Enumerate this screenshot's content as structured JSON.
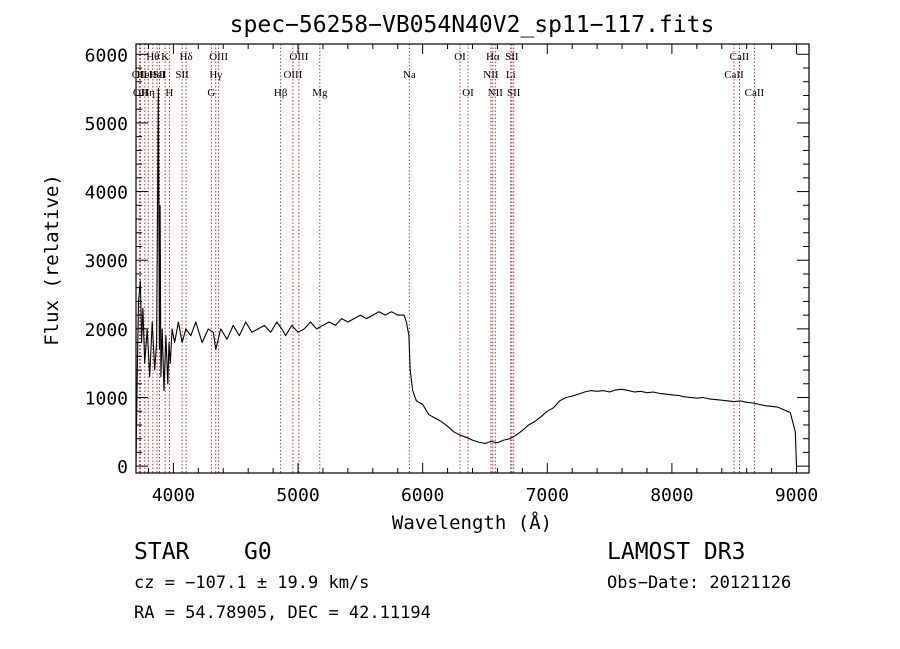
{
  "chart_data": {
    "type": "line",
    "title": "spec−56258−VB054N40V2_sp11−117.fits",
    "xlabel": "Wavelength (Å)",
    "ylabel": "Flux (relative)",
    "xlim": [
      3700,
      9100
    ],
    "ylim": [
      -100,
      6150
    ],
    "xticks": [
      4000,
      5000,
      6000,
      7000,
      8000,
      9000
    ],
    "yticks": [
      0,
      1000,
      2000,
      3000,
      4000,
      5000,
      6000
    ],
    "series": [
      {
        "name": "flux",
        "x": [
          3700,
          3710,
          3720,
          3735,
          3745,
          3755,
          3770,
          3790,
          3810,
          3830,
          3850,
          3865,
          3880,
          3888,
          3893,
          3900,
          3910,
          3925,
          3940,
          3955,
          3965,
          3975,
          3990,
          4010,
          4040,
          4070,
          4100,
          4140,
          4180,
          4230,
          4280,
          4320,
          4340,
          4380,
          4430,
          4480,
          4530,
          4580,
          4630,
          4680,
          4730,
          4780,
          4830,
          4870,
          4900,
          4950,
          5000,
          5050,
          5100,
          5150,
          5200,
          5250,
          5300,
          5350,
          5400,
          5450,
          5500,
          5550,
          5600,
          5650,
          5700,
          5750,
          5800,
          5850,
          5870,
          5890,
          5900,
          5920,
          5950,
          6000,
          6050,
          6100,
          6150,
          6200,
          6250,
          6300,
          6350,
          6400,
          6450,
          6500,
          6550,
          6600,
          6650,
          6700,
          6750,
          6800,
          6850,
          6900,
          6950,
          7000,
          7050,
          7100,
          7150,
          7200,
          7250,
          7300,
          7350,
          7400,
          7450,
          7500,
          7550,
          7600,
          7650,
          7700,
          7750,
          7800,
          7850,
          7900,
          7950,
          8000,
          8050,
          8100,
          8150,
          8200,
          8250,
          8300,
          8350,
          8400,
          8450,
          8500,
          8550,
          8600,
          8650,
          8700,
          8750,
          8800,
          8850,
          8900,
          8950,
          8990,
          9000
        ],
        "y": [
          0,
          1300,
          2400,
          2700,
          1800,
          2300,
          1500,
          2000,
          1300,
          2100,
          1400,
          1800,
          5500,
          1700,
          3800,
          1300,
          2000,
          1100,
          1900,
          1200,
          1800,
          1500,
          2000,
          1800,
          2100,
          1800,
          2000,
          1900,
          2100,
          1800,
          2000,
          1950,
          1700,
          2000,
          1850,
          2050,
          1900,
          2100,
          1950,
          2000,
          2050,
          1950,
          2100,
          2000,
          1900,
          2050,
          1950,
          2000,
          2100,
          2000,
          2050,
          2100,
          2050,
          2150,
          2100,
          2150,
          2200,
          2150,
          2200,
          2250,
          2200,
          2250,
          2200,
          2200,
          2100,
          1900,
          1400,
          1100,
          950,
          900,
          750,
          700,
          650,
          580,
          500,
          450,
          420,
          380,
          350,
          330,
          360,
          340,
          380,
          400,
          450,
          520,
          600,
          650,
          720,
          800,
          850,
          950,
          1000,
          1020,
          1050,
          1080,
          1100,
          1090,
          1100,
          1080,
          1110,
          1120,
          1100,
          1080,
          1090,
          1070,
          1080,
          1060,
          1050,
          1040,
          1030,
          1010,
          1000,
          990,
          1000,
          980,
          970,
          960,
          950,
          940,
          950,
          930,
          920,
          900,
          880,
          870,
          860,
          820,
          780,
          500,
          0
        ]
      }
    ],
    "lines": [
      {
        "wl": 3727,
        "label": "OII",
        "row": 1
      },
      {
        "wl": 3736,
        "label": "OII",
        "row": 2
      },
      {
        "wl": 3771,
        "label": "HeI",
        "row": 1
      },
      {
        "wl": 3798,
        "label": "Hη",
        "row": 2
      },
      {
        "wl": 3835,
        "label": "Hθ",
        "row": 0
      },
      {
        "wl": 3869,
        "label": "HeI",
        "row": 1
      },
      {
        "wl": 3889,
        "label": "SII",
        "row": 1
      },
      {
        "wl": 3934,
        "label": "K",
        "row": 0
      },
      {
        "wl": 3968,
        "label": "H",
        "row": 2
      },
      {
        "wl": 4102,
        "label": "Hδ",
        "row": 0
      },
      {
        "wl": 4070,
        "label": "SII",
        "row": 1
      },
      {
        "wl": 4305,
        "label": "G",
        "row": 2
      },
      {
        "wl": 4340,
        "label": "Hγ",
        "row": 1
      },
      {
        "wl": 4363,
        "label": "OIII",
        "row": 0
      },
      {
        "wl": 4861,
        "label": "Hβ",
        "row": 2
      },
      {
        "wl": 4959,
        "label": "OIII",
        "row": 1
      },
      {
        "wl": 5007,
        "label": "OIII",
        "row": 0
      },
      {
        "wl": 5175,
        "label": "Mg",
        "row": 2
      },
      {
        "wl": 5893,
        "label": "Na",
        "row": 1
      },
      {
        "wl": 6300,
        "label": "OI",
        "row": 0
      },
      {
        "wl": 6364,
        "label": "OI",
        "row": 2
      },
      {
        "wl": 6548,
        "label": "NII",
        "row": 1
      },
      {
        "wl": 6563,
        "label": "Hα",
        "row": 0
      },
      {
        "wl": 6583,
        "label": "NII",
        "row": 2
      },
      {
        "wl": 6707,
        "label": "Li",
        "row": 1
      },
      {
        "wl": 6716,
        "label": "SII",
        "row": 0
      },
      {
        "wl": 6731,
        "label": "SII",
        "row": 2
      },
      {
        "wl": 8498,
        "label": "CaII",
        "row": 1
      },
      {
        "wl": 8542,
        "label": "CaII",
        "row": 0
      },
      {
        "wl": 8662,
        "label": "CaII",
        "row": 2
      }
    ]
  },
  "info": {
    "object_class": "STAR",
    "subclass": "G0",
    "survey": "LAMOST DR3",
    "cz": "cz = −107.1 ± 19.9 km/s",
    "obs_date": "Obs−Date: 20121126",
    "coords": "RA =  54.78905, DEC =  42.11194"
  },
  "colors": {
    "axes": "#000000",
    "spectrum": "#000000",
    "line_marker": "#b22222"
  }
}
